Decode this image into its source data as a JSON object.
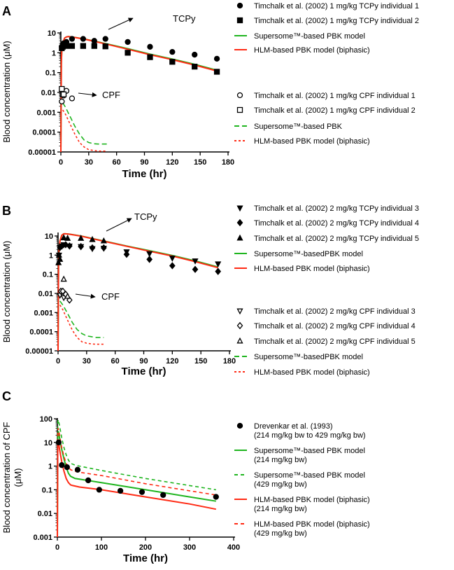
{
  "colors": {
    "green": "#1fb51f",
    "red": "#ff2a14",
    "black": "#000000"
  },
  "chart_data": [
    {
      "type": "scatter",
      "panel": "A",
      "xlabel": "Time (hr)",
      "ylabel": "Blood concentration  (μM)",
      "xlim": [
        0,
        180
      ],
      "ylim": [
        1e-05,
        12
      ],
      "yscale": "log",
      "xticks": [
        "0",
        "30",
        "60",
        "90",
        "120",
        "150",
        "180"
      ],
      "yticks": [
        "0.00001",
        "0.0001",
        "0.001",
        "0.01",
        "0.1",
        "1",
        "10"
      ],
      "annotations": [
        "TCPy",
        "CPF"
      ],
      "series": [
        {
          "name": "Timchalk et al. (2002) 1 mg/kg TCPy individual 1",
          "kind": "points",
          "marker": "circle",
          "fill": true,
          "x": [
            1,
            2,
            3,
            6,
            12,
            24,
            36,
            48,
            72,
            96,
            120,
            144,
            168
          ],
          "y": [
            2,
            2.5,
            3,
            3.5,
            5,
            5,
            4,
            5,
            3.5,
            2,
            1.1,
            0.8,
            0.5
          ]
        },
        {
          "name": "Timchalk et al. (2002) 1 mg/kg TCPy individual 2",
          "kind": "points",
          "marker": "square",
          "fill": true,
          "x": [
            1,
            2,
            3,
            6,
            12,
            24,
            36,
            48,
            72,
            96,
            120,
            144,
            168
          ],
          "y": [
            1.7,
            2,
            2.5,
            2.2,
            2.2,
            2.2,
            2.2,
            2.1,
            1,
            0.6,
            0.35,
            0.2,
            0.11
          ]
        },
        {
          "name": "Supersome™-based PBK model",
          "kind": "line",
          "color": "green",
          "dash": "",
          "x": [
            0,
            0.5,
            1,
            2,
            4,
            6,
            8,
            12,
            24,
            48,
            72,
            96,
            120,
            144,
            168
          ],
          "y": [
            1e-05,
            0.3,
            1.2,
            3,
            5.5,
            6.3,
            6.6,
            6.3,
            5.1,
            2.9,
            1.6,
            0.85,
            0.48,
            0.26,
            0.13
          ]
        },
        {
          "name": "HLM-based PBK model (biphasic)",
          "kind": "line",
          "color": "red",
          "dash": "",
          "x": [
            0,
            0.5,
            1,
            2,
            4,
            6,
            8,
            12,
            24,
            48,
            72,
            96,
            120,
            144,
            168
          ],
          "y": [
            1e-05,
            0.3,
            1.2,
            3,
            5.5,
            6.3,
            6.5,
            6.2,
            5,
            2.8,
            1.5,
            0.8,
            0.45,
            0.24,
            0.12
          ]
        },
        {
          "name": "Timchalk et al. (2002) 1 mg/kg CPF individual 1",
          "kind": "points",
          "marker": "circle",
          "fill": false,
          "x": [
            1,
            3,
            6,
            12
          ],
          "y": [
            0.0035,
            0.007,
            0.012,
            0.005
          ]
        },
        {
          "name": "Timchalk et al. (2002) 1 mg/kg CPF individual 2",
          "kind": "points",
          "marker": "square",
          "fill": false,
          "x": [
            1,
            2,
            3
          ],
          "y": [
            0.015,
            0.008,
            0.008
          ]
        },
        {
          "name": "Supersome™-based PBK",
          "kind": "line",
          "color": "green",
          "dash": "7,4",
          "x": [
            2,
            5,
            10,
            15,
            20,
            25,
            30,
            35,
            40,
            45,
            50
          ],
          "y": [
            0.003,
            0.0018,
            0.0006,
            0.0002,
            8e-05,
            4e-05,
            3e-05,
            2.6e-05,
            2.5e-05,
            2.5e-05,
            2.5e-05
          ]
        },
        {
          "name": "HLM-based PBK model (biphasic)",
          "kind": "line",
          "color": "red",
          "dash": "3,3",
          "x": [
            2,
            5,
            10,
            15,
            20,
            25,
            30,
            35,
            40,
            45,
            48
          ],
          "y": [
            0.0013,
            0.0008,
            0.00025,
            8e-05,
            3e-05,
            1.8e-05,
            1.3e-05,
            1.2e-05,
            1.1e-05,
            1.1e-05,
            1.1e-05
          ]
        }
      ]
    },
    {
      "type": "scatter",
      "panel": "B",
      "xlabel": "Time (hr)",
      "ylabel": "Blood concentration  (μM)",
      "xlim": [
        0,
        180
      ],
      "ylim": [
        1e-05,
        14
      ],
      "yscale": "log",
      "xticks": [
        "0",
        "30",
        "60",
        "90",
        "120",
        "150",
        "180"
      ],
      "yticks": [
        "0.00001",
        "0.0001",
        "0.001",
        "0.01",
        "0.1",
        "1",
        "10"
      ],
      "annotations": [
        "TCPy",
        "CPF"
      ],
      "series": [
        {
          "name": "Timchalk et al. (2002) 2 mg/kg TCPy individual 3",
          "kind": "points",
          "marker": "tridown",
          "fill": true,
          "x": [
            1,
            2,
            4,
            6,
            12,
            24,
            36,
            48,
            72,
            96,
            120,
            144,
            168
          ],
          "y": [
            1,
            2.5,
            3,
            3.5,
            3,
            2.8,
            2.2,
            2.3,
            1.5,
            1.2,
            0.7,
            0.5,
            0.35
          ]
        },
        {
          "name": "Timchalk et al. (2002) 2 mg/kg TCPy individual 4",
          "kind": "points",
          "marker": "diamond",
          "fill": true,
          "x": [
            2,
            4,
            8,
            12,
            24,
            36,
            48,
            72,
            96,
            120,
            144,
            168
          ],
          "y": [
            2.5,
            3,
            3.5,
            3,
            2.8,
            2.4,
            2.4,
            1.1,
            0.6,
            0.28,
            0.18,
            0.14
          ]
        },
        {
          "name": "Timchalk et al. (2002) 2 mg/kg TCPy individual 5",
          "kind": "points",
          "marker": "triup",
          "fill": true,
          "x": [
            0.5,
            1,
            2,
            6,
            10,
            24,
            36,
            48
          ],
          "y": [
            0.4,
            1,
            0.6,
            8,
            7.5,
            7.5,
            6.5,
            5.5
          ]
        },
        {
          "name": "Supersome™-basedPBK model",
          "kind": "line",
          "color": "green",
          "dash": "",
          "x": [
            0,
            0.5,
            1,
            2,
            4,
            6,
            8,
            12,
            24,
            48,
            72,
            96,
            120,
            144,
            168
          ],
          "y": [
            1e-05,
            0.5,
            2,
            5.5,
            11,
            13,
            13,
            12.5,
            10,
            5.5,
            3,
            1.7,
            0.95,
            0.5,
            0.24
          ]
        },
        {
          "name": "HLM-based PBK model (biphasic)",
          "kind": "line",
          "color": "red",
          "dash": "",
          "x": [
            0,
            0.5,
            1,
            2,
            4,
            6,
            8,
            12,
            24,
            48,
            72,
            96,
            120,
            144,
            168
          ],
          "y": [
            1e-05,
            0.5,
            2,
            5.5,
            11,
            13,
            13,
            12.3,
            9.8,
            5.3,
            2.9,
            1.6,
            0.9,
            0.46,
            0.22
          ]
        },
        {
          "name": "Timchalk et al. (2002) 2 mg/kg CPF individual 3",
          "kind": "points",
          "marker": "tridown",
          "fill": false,
          "x": [
            2,
            6
          ],
          "y": [
            0.008,
            0.006
          ]
        },
        {
          "name": "Timchalk et al. (2002) 2 mg/kg CPF individual 4",
          "kind": "points",
          "marker": "diamond",
          "fill": false,
          "x": [
            3,
            5,
            8,
            12
          ],
          "y": [
            0.013,
            0.013,
            0.009,
            0.0045
          ]
        },
        {
          "name": "Timchalk et al. (2002) 2 mg/kg CPF individual 5",
          "kind": "points",
          "marker": "triup",
          "fill": false,
          "x": [
            6,
            10
          ],
          "y": [
            0.055,
            0.007
          ]
        },
        {
          "name": "Supersome™-basedPBK model",
          "kind": "line",
          "color": "green",
          "dash": "7,4",
          "x": [
            2,
            5,
            10,
            15,
            20,
            25,
            30,
            35,
            40,
            48
          ],
          "y": [
            0.004,
            0.0025,
            0.0009,
            0.0003,
            0.00013,
            8e-05,
            6e-05,
            5.5e-05,
            5e-05,
            5e-05
          ]
        },
        {
          "name": "HLM-based PBK model (biphasic)",
          "kind": "line",
          "color": "red",
          "dash": "3,3",
          "x": [
            2,
            5,
            10,
            15,
            20,
            25,
            30,
            35,
            40,
            48
          ],
          "y": [
            0.0025,
            0.0014,
            0.0004,
            0.00012,
            5e-05,
            3e-05,
            2.5e-05,
            2.3e-05,
            2.2e-05,
            2.2e-05
          ]
        }
      ]
    },
    {
      "type": "scatter",
      "panel": "C",
      "xlabel": "Time (hr)",
      "ylabel": "Blood concentration of CPF",
      "ylabel2": "(μM)",
      "xlim": [
        0,
        400
      ],
      "ylim": [
        0.001,
        100
      ],
      "yscale": "log",
      "xticks": [
        "0",
        "100",
        "200",
        "300",
        "400"
      ],
      "yticks": [
        "0.001",
        "0.01",
        "0.1",
        "1",
        "10",
        "100"
      ],
      "series": [
        {
          "name": "Drevenkar et al. (1993)",
          "name2": "(214 mg/kg bw to 429 mg/kg bw)",
          "kind": "points",
          "marker": "circle",
          "fill": true,
          "x": [
            3,
            10,
            22,
            46,
            70,
            95,
            143,
            192,
            240,
            360
          ],
          "y": [
            10,
            1.1,
            0.9,
            0.7,
            0.25,
            0.1,
            0.09,
            0.08,
            0.06,
            0.05
          ]
        },
        {
          "name": "Supersome™-based PBK model",
          "name2": "(214 mg/kg bw)",
          "kind": "line",
          "color": "green",
          "dash": "",
          "x": [
            0,
            1,
            2,
            5,
            10,
            15,
            20,
            25,
            30,
            40,
            50,
            100,
            200,
            300,
            360
          ],
          "y": [
            0.001,
            20,
            30,
            15,
            5,
            2,
            0.9,
            0.5,
            0.37,
            0.3,
            0.28,
            0.2,
            0.1,
            0.05,
            0.033
          ]
        },
        {
          "name": "Supersome™-based PBK model",
          "name2": "(429 mg/kg bw)",
          "kind": "line",
          "color": "green",
          "dash": "5,4",
          "x": [
            0,
            1,
            2,
            5,
            10,
            15,
            20,
            25,
            30,
            40,
            50,
            100,
            200,
            300,
            360
          ],
          "y": [
            0.001,
            70,
            90,
            50,
            15,
            6,
            3,
            1.8,
            1.3,
            1.1,
            1,
            0.65,
            0.3,
            0.15,
            0.1
          ]
        },
        {
          "name": "HLM-based PBK model (biphasic)",
          "name2": "(214 mg/kg bw)",
          "kind": "line",
          "color": "red",
          "dash": "",
          "x": [
            0,
            1,
            2,
            5,
            10,
            15,
            20,
            25,
            30,
            35,
            50,
            100,
            200,
            300,
            360
          ],
          "y": [
            0.001,
            10,
            12,
            5,
            1.5,
            0.6,
            0.3,
            0.2,
            0.16,
            0.15,
            0.13,
            0.1,
            0.05,
            0.025,
            0.015
          ]
        },
        {
          "name": "HLM-based PBK model (biphasic)",
          "name2": "(429 mg/kg bw)",
          "kind": "line",
          "color": "red",
          "dash": "5,4",
          "x": [
            0,
            1,
            2,
            5,
            10,
            15,
            20,
            25,
            30,
            40,
            50,
            100,
            200,
            300,
            360
          ],
          "y": [
            0.001,
            30,
            40,
            20,
            6,
            2.5,
            1.3,
            0.9,
            0.7,
            0.6,
            0.55,
            0.4,
            0.18,
            0.09,
            0.06
          ]
        }
      ]
    }
  ]
}
